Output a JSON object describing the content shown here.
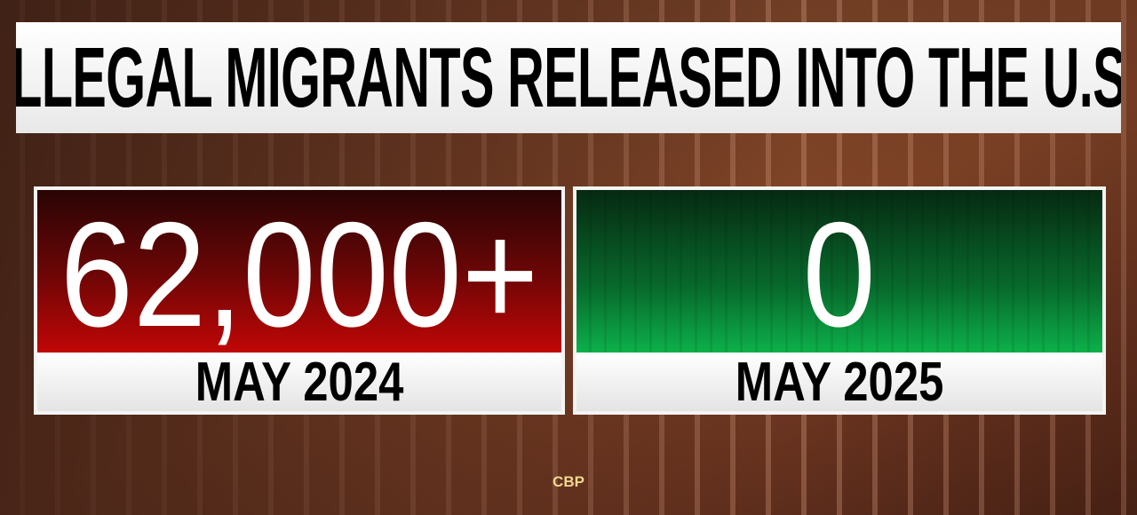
{
  "title": "ILLEGAL MIGRANTS RELEASED INTO THE U.S.",
  "comparison": [
    {
      "value": "62,000+",
      "period": "MAY 2024",
      "color": "#c00606"
    },
    {
      "value": "0",
      "period": "MAY 2025",
      "color": "#0cb04a"
    }
  ],
  "source": "CBP"
}
